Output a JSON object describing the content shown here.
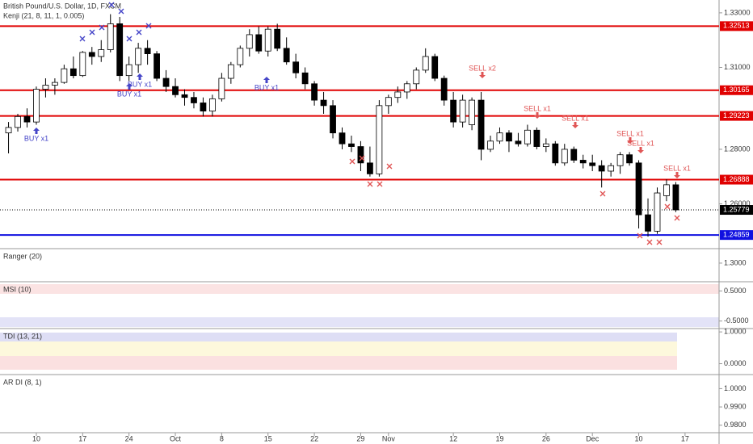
{
  "chart_data": {
    "type": "candlestick",
    "title": "British Pound/U.S. Dollar, 1D, FXCM",
    "subtitle": "Kenji (21, 8, 11, 1, 0.005)",
    "up_color": "#ffffff",
    "down_color": "#000000",
    "ohlc": [
      [
        1.286,
        1.29,
        1.2785,
        1.288
      ],
      [
        1.288,
        1.293,
        1.2865,
        1.292
      ],
      [
        1.292,
        1.295,
        1.288,
        1.29
      ],
      [
        1.29,
        1.303,
        1.289,
        1.302
      ],
      [
        1.302,
        1.306,
        1.299,
        1.3035
      ],
      [
        1.3035,
        1.306,
        1.3,
        1.3045
      ],
      [
        1.3045,
        1.311,
        1.304,
        1.3095
      ],
      [
        1.3095,
        1.314,
        1.306,
        1.307
      ],
      [
        1.307,
        1.316,
        1.3065,
        1.3155
      ],
      [
        1.3155,
        1.3175,
        1.311,
        1.314
      ],
      [
        1.314,
        1.32,
        1.312,
        1.3165
      ],
      [
        1.3165,
        1.3295,
        1.3155,
        1.326
      ],
      [
        1.326,
        1.3285,
        1.305,
        1.307
      ],
      [
        1.307,
        1.314,
        1.305,
        1.311
      ],
      [
        1.311,
        1.319,
        1.308,
        1.317
      ],
      [
        1.317,
        1.32,
        1.311,
        1.315
      ],
      [
        1.315,
        1.316,
        1.305,
        1.306
      ],
      [
        1.306,
        1.309,
        1.301,
        1.303
      ],
      [
        1.303,
        1.306,
        1.299,
        1.3
      ],
      [
        1.3,
        1.302,
        1.296,
        1.299
      ],
      [
        1.299,
        1.301,
        1.295,
        1.297
      ],
      [
        1.297,
        1.299,
        1.292,
        1.294
      ],
      [
        1.294,
        1.3,
        1.292,
        1.2985
      ],
      [
        1.2985,
        1.308,
        1.2975,
        1.306
      ],
      [
        1.306,
        1.312,
        1.304,
        1.311
      ],
      [
        1.311,
        1.318,
        1.31,
        1.317
      ],
      [
        1.317,
        1.324,
        1.314,
        1.322
      ],
      [
        1.322,
        1.325,
        1.315,
        1.316
      ],
      [
        1.316,
        1.325,
        1.314,
        1.324
      ],
      [
        1.324,
        1.326,
        1.316,
        1.317
      ],
      [
        1.317,
        1.321,
        1.311,
        1.312
      ],
      [
        1.312,
        1.315,
        1.306,
        1.308
      ],
      [
        1.308,
        1.31,
        1.302,
        1.304
      ],
      [
        1.304,
        1.305,
        1.296,
        1.298
      ],
      [
        1.298,
        1.301,
        1.293,
        1.296
      ],
      [
        1.296,
        1.298,
        1.284,
        1.286
      ],
      [
        1.286,
        1.288,
        1.28,
        1.282
      ],
      [
        1.282,
        1.285,
        1.279,
        1.281
      ],
      [
        1.281,
        1.283,
        1.272,
        1.275
      ],
      [
        1.275,
        1.281,
        1.27,
        1.271
      ],
      [
        1.271,
        1.298,
        1.27,
        1.296
      ],
      [
        1.296,
        1.3,
        1.293,
        1.299
      ],
      [
        1.299,
        1.303,
        1.297,
        1.301
      ],
      [
        1.301,
        1.305,
        1.2985,
        1.304
      ],
      [
        1.304,
        1.31,
        1.302,
        1.309
      ],
      [
        1.309,
        1.317,
        1.308,
        1.314
      ],
      [
        1.314,
        1.315,
        1.305,
        1.306
      ],
      [
        1.306,
        1.307,
        1.296,
        1.298
      ],
      [
        1.298,
        1.301,
        1.288,
        1.29
      ],
      [
        1.29,
        1.3,
        1.288,
        1.298
      ],
      [
        1.289,
        1.299,
        1.287,
        1.298
      ],
      [
        1.298,
        1.301,
        1.276,
        1.28
      ],
      [
        1.28,
        1.285,
        1.279,
        1.283
      ],
      [
        1.283,
        1.288,
        1.282,
        1.286
      ],
      [
        1.286,
        1.287,
        1.279,
        1.283
      ],
      [
        1.283,
        1.286,
        1.281,
        1.282
      ],
      [
        1.282,
        1.289,
        1.281,
        1.287
      ],
      [
        1.287,
        1.288,
        1.28,
        1.281
      ],
      [
        1.281,
        1.284,
        1.279,
        1.282
      ],
      [
        1.282,
        1.283,
        1.274,
        1.275
      ],
      [
        1.275,
        1.282,
        1.274,
        1.28
      ],
      [
        1.28,
        1.281,
        1.275,
        1.276
      ],
      [
        1.276,
        1.278,
        1.273,
        1.275
      ],
      [
        1.275,
        1.278,
        1.272,
        1.274
      ],
      [
        1.274,
        1.276,
        1.266,
        1.272
      ],
      [
        1.272,
        1.275,
        1.27,
        1.274
      ],
      [
        1.274,
        1.279,
        1.271,
        1.278
      ],
      [
        1.278,
        1.279,
        1.274,
        1.275
      ],
      [
        1.275,
        1.276,
        1.251,
        1.256
      ],
      [
        1.256,
        1.262,
        1.248,
        1.25
      ],
      [
        1.25,
        1.266,
        1.249,
        1.264
      ],
      [
        1.263,
        1.269,
        1.261,
        1.267
      ],
      [
        1.267,
        1.268,
        1.257,
        1.2578
      ]
    ],
    "xlim": [
      -0.92,
      76.67
    ],
    "xticks": [
      {
        "value": 3,
        "label": "10"
      },
      {
        "value": 8,
        "label": "17"
      },
      {
        "value": 13,
        "label": "24"
      },
      {
        "value": 18,
        "label": "Oct"
      },
      {
        "value": 23,
        "label": "8"
      },
      {
        "value": 28,
        "label": "15"
      },
      {
        "value": 33,
        "label": "22"
      },
      {
        "value": 38,
        "label": "29"
      },
      {
        "value": 41,
        "label": "Nov"
      },
      {
        "value": 48,
        "label": "12"
      },
      {
        "value": 53,
        "label": "19"
      },
      {
        "value": 58,
        "label": "26"
      },
      {
        "value": 63,
        "label": "Dec"
      },
      {
        "value": 68,
        "label": "10"
      },
      {
        "value": 73,
        "label": "17"
      }
    ],
    "ylim": [
      1.2436,
      1.3347
    ],
    "yticks": [
      {
        "value": 1.33,
        "label": "1.33000"
      },
      {
        "value": 1.31,
        "label": "1.31000"
      },
      {
        "value": 1.28,
        "label": "1.28000"
      },
      {
        "value": 1.26,
        "label": "1.26000"
      }
    ],
    "levels": [
      {
        "value": 1.32513,
        "color": "#e00000"
      },
      {
        "value": 1.30165,
        "color": "#e00000"
      },
      {
        "value": 1.29223,
        "color": "#e00000"
      },
      {
        "value": 1.26888,
        "color": "#e00000"
      },
      {
        "value": 1.24859,
        "color": "#1010e0"
      }
    ],
    "last_price": {
      "value": 1.25779,
      "color": "#000000"
    },
    "annotations": [
      {
        "text": "BUY x1",
        "color": "#4545c8"
      },
      {
        "text": "BUY x1",
        "color": "#4545c8"
      },
      {
        "text": "BUY x1",
        "color": "#4545c8"
      },
      {
        "text": "BUY x1",
        "color": "#4545c8"
      },
      {
        "text": "SELL x2",
        "color": "#e05555"
      },
      {
        "text": "SELL x1",
        "color": "#e05555"
      },
      {
        "text": "SELL x1",
        "color": "#e05555"
      },
      {
        "text": "SELL x1",
        "color": "#e05555"
      },
      {
        "text": "SELL x1",
        "color": "#e05555"
      },
      {
        "text": "SELL x1",
        "color": "#e05555"
      }
    ],
    "panels": [
      {
        "title": "Ranger (20)",
        "ylim": [
          1.255,
          1.335
        ],
        "yticks": [
          {
            "value": 1.3,
            "label": "1.3000"
          }
        ]
      },
      {
        "title": "MSI (10)",
        "ylim": [
          -0.75,
          0.806
        ],
        "yticks": [
          {
            "value": 0.5,
            "label": "0.5000"
          },
          {
            "value": -0.5,
            "label": "-0.5000"
          }
        ]
      },
      {
        "title": "TDI (13, 21)",
        "ylim": [
          -0.342,
          1.105
        ],
        "yticks": [
          {
            "value": 1.0,
            "label": "1.0000"
          },
          {
            "value": 0.0,
            "label": "0.0000"
          }
        ]
      },
      {
        "title": "AR DI (8, 1)",
        "ylim": [
          0.9759,
          1.0077
        ],
        "yticks": [
          {
            "value": 1.0,
            "label": "1.0000"
          },
          {
            "value": 0.99,
            "label": "0.9900"
          },
          {
            "value": 0.98,
            "label": "0.9800"
          }
        ]
      }
    ]
  }
}
